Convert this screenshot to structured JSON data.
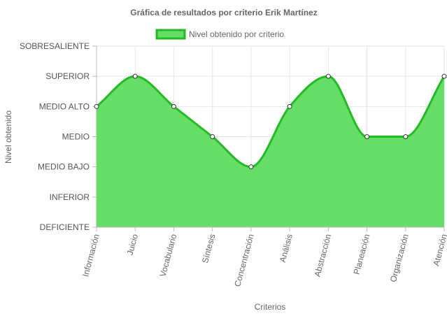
{
  "chart_data": {
    "type": "area",
    "title": "Gráfica de resultados por criterio Erik Martínez",
    "xlabel": "Criterios",
    "ylabel": "Nivel obtenido",
    "categories": [
      "Información",
      "Juicio",
      "Vocabulario",
      "Síntesis",
      "Concentración",
      "Análisis",
      "Abstracción",
      "Planeación",
      "Organización",
      "Atención"
    ],
    "y_levels": [
      "DEFICIENTE",
      "INFERIOR",
      "MEDIO BAJO",
      "MEDIO",
      "MEDIO ALTO",
      "SUPERIOR",
      "SOBRESALIENTE"
    ],
    "ylim": [
      0,
      6
    ],
    "series": [
      {
        "name": "Nivel obtenido por criterio",
        "values": [
          4,
          5,
          4,
          3,
          2,
          4,
          5,
          3,
          3,
          5
        ],
        "fill_color": "#66dd66",
        "line_color": "#22bb22"
      }
    ],
    "legend_position": "top",
    "grid": true,
    "colors": {
      "grid": "#e6e6e6",
      "axis": "#bbbbbb",
      "point_fill": "#ffffff",
      "point_stroke": "#333333"
    }
  }
}
